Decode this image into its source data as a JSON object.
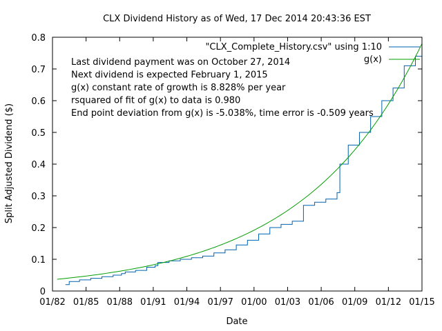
{
  "chart_data": {
    "type": "line",
    "title": "CLX Dividend History as of Wed, 17 Dec 2014 20:43:36 EST",
    "xlabel": "Date",
    "ylabel": "Split Adjusted Dividend ($)",
    "xlim": [
      "1982-01-01",
      "2015-01-01"
    ],
    "ylim": [
      0,
      0.8
    ],
    "x_ticks": [
      "01/82",
      "01/85",
      "01/88",
      "01/91",
      "01/94",
      "01/97",
      "01/00",
      "01/03",
      "01/06",
      "01/09",
      "01/12",
      "01/15"
    ],
    "y_ticks": [
      "0",
      "0.1",
      "0.2",
      "0.3",
      "0.4",
      "0.5",
      "0.6",
      "0.7",
      "0.8"
    ],
    "grid": false,
    "legend_position": "top-right",
    "annotations": [
      "Last dividend payment was on October 27, 2014",
      "Next dividend is expected February 1, 2015",
      "g(x) constant rate of growth is  8.828% per year",
      "rsquared of fit of g(x) to data is  0.980",
      "End point deviation from g(x) is   -5.038%, time error is   -0.509 years"
    ],
    "series": [
      {
        "name": "\"CLX_Complete_History.csv\" using 1:10",
        "color": "#0060ad",
        "style": "steps",
        "x": [
          "1983-03-01",
          "1983-07-01",
          "1984-06-01",
          "1985-06-01",
          "1986-06-01",
          "1987-06-01",
          "1988-03-01",
          "1988-07-01",
          "1989-06-01",
          "1990-06-01",
          "1991-03-01",
          "1991-06-01",
          "1992-06-01",
          "1993-06-01",
          "1994-06-01",
          "1995-06-01",
          "1996-06-01",
          "1997-06-01",
          "1998-06-01",
          "1999-06-01",
          "2000-06-01",
          "2001-06-01",
          "2002-06-01",
          "2003-06-01",
          "2004-06-01",
          "2005-06-01",
          "2006-06-01",
          "2007-06-01",
          "2007-09-01",
          "2008-06-01",
          "2009-06-01",
          "2010-06-01",
          "2011-06-01",
          "2012-06-01",
          "2013-06-01",
          "2014-06-01",
          "2015-01-01"
        ],
        "y": [
          0.02,
          0.03,
          0.035,
          0.04,
          0.045,
          0.05,
          0.055,
          0.06,
          0.065,
          0.075,
          0.08,
          0.09,
          0.095,
          0.1,
          0.105,
          0.11,
          0.12,
          0.13,
          0.145,
          0.16,
          0.18,
          0.2,
          0.21,
          0.22,
          0.27,
          0.28,
          0.29,
          0.31,
          0.4,
          0.46,
          0.5,
          0.55,
          0.6,
          0.64,
          0.71,
          0.74,
          0.74
        ]
      },
      {
        "name": "g(x)",
        "color": "#009e00",
        "style": "line",
        "function": "exponential",
        "x": [
          "1982-06-01",
          "2015-01-01"
        ],
        "y": [
          0.037,
          0.78
        ]
      }
    ]
  }
}
